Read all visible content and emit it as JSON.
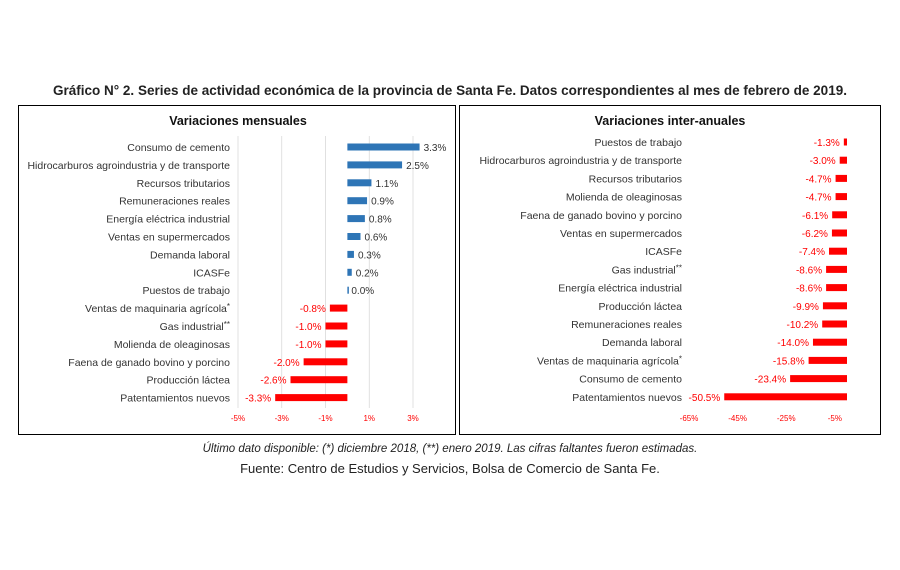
{
  "title": "Gráfico N° 2. Series de actividad económica de la provincia de Santa Fe. Datos correspondientes al mes de febrero de 2019.",
  "footnote": "Último dato disponible: (*) diciembre 2018, (**) enero 2019. Las cifras faltantes fueron estimadas.",
  "source": "Fuente: Centro de Estudios y Servicios, Bolsa de Comercio de Santa Fe.",
  "colors": {
    "positive": "#2e75b6",
    "negative": "#ff0000",
    "grid": "#d9d9d9"
  },
  "chart_data": [
    {
      "type": "bar",
      "orientation": "horizontal",
      "title": "Variaciones mensuales",
      "xlim": [
        -5,
        3
      ],
      "ticks": [
        -5,
        -3,
        -1,
        1,
        3
      ],
      "tick_labels": [
        "-5%",
        "-3%",
        "-1%",
        "1%",
        "3%"
      ],
      "grid": true,
      "categories": [
        {
          "label": "Consumo de cemento",
          "mark": "",
          "value": 3.3,
          "value_label": "3.3%"
        },
        {
          "label": "Hidrocarburos agroindustria y de transporte",
          "mark": "",
          "value": 2.5,
          "value_label": "2.5%"
        },
        {
          "label": "Recursos tributarios",
          "mark": "",
          "value": 1.1,
          "value_label": "1.1%"
        },
        {
          "label": "Remuneraciones reales",
          "mark": "",
          "value": 0.9,
          "value_label": "0.9%"
        },
        {
          "label": "Energía eléctrica industrial",
          "mark": "",
          "value": 0.8,
          "value_label": "0.8%"
        },
        {
          "label": "Ventas en supermercados",
          "mark": "",
          "value": 0.6,
          "value_label": "0.6%"
        },
        {
          "label": "Demanda laboral",
          "mark": "",
          "value": 0.3,
          "value_label": "0.3%"
        },
        {
          "label": "ICASFe",
          "mark": "",
          "value": 0.2,
          "value_label": "0.2%"
        },
        {
          "label": "Puestos de trabajo",
          "mark": "",
          "value": 0.0,
          "value_label": "0.0%"
        },
        {
          "label": "Ventas de maquinaria agrícola",
          "mark": "*",
          "value": -0.8,
          "value_label": "-0.8%"
        },
        {
          "label": "Gas industrial",
          "mark": "**",
          "value": -1.0,
          "value_label": "-1.0%"
        },
        {
          "label": "Molienda de oleaginosas",
          "mark": "",
          "value": -1.0,
          "value_label": "-1.0%"
        },
        {
          "label": "Faena de ganado bovino y porcino",
          "mark": "",
          "value": -2.0,
          "value_label": "-2.0%"
        },
        {
          "label": "Producción láctea",
          "mark": "",
          "value": -2.6,
          "value_label": "-2.6%"
        },
        {
          "label": "Patentamientos nuevos",
          "mark": "",
          "value": -3.3,
          "value_label": "-3.3%"
        }
      ]
    },
    {
      "type": "bar",
      "orientation": "horizontal",
      "title": "Variaciones inter-anuales",
      "xlim": [
        -65,
        0
      ],
      "ticks": [
        -65,
        -45,
        -25,
        -5
      ],
      "tick_labels": [
        "-65%",
        "-45%",
        "-25%",
        "-5%"
      ],
      "grid": false,
      "categories": [
        {
          "label": "Puestos de trabajo",
          "mark": "",
          "value": -1.3,
          "value_label": "-1.3%"
        },
        {
          "label": "Hidrocarburos agroindustria y de transporte",
          "mark": "",
          "value": -3.0,
          "value_label": "-3.0%"
        },
        {
          "label": "Recursos tributarios",
          "mark": "",
          "value": -4.7,
          "value_label": "-4.7%"
        },
        {
          "label": "Molienda de oleaginosas",
          "mark": "",
          "value": -4.7,
          "value_label": "-4.7%"
        },
        {
          "label": "Faena de ganado bovino y porcino",
          "mark": "",
          "value": -6.1,
          "value_label": "-6.1%"
        },
        {
          "label": "Ventas en supermercados",
          "mark": "",
          "value": -6.2,
          "value_label": "-6.2%"
        },
        {
          "label": "ICASFe",
          "mark": "",
          "value": -7.4,
          "value_label": "-7.4%"
        },
        {
          "label": "Gas industrial",
          "mark": "**",
          "value": -8.6,
          "value_label": "-8.6%"
        },
        {
          "label": "Energía eléctrica industrial",
          "mark": "",
          "value": -8.6,
          "value_label": "-8.6%"
        },
        {
          "label": "Producción láctea",
          "mark": "",
          "value": -9.9,
          "value_label": "-9.9%"
        },
        {
          "label": "Remuneraciones reales",
          "mark": "",
          "value": -10.2,
          "value_label": "-10.2%"
        },
        {
          "label": "Demanda laboral",
          "mark": "",
          "value": -14.0,
          "value_label": "-14.0%"
        },
        {
          "label": "Ventas de maquinaria agrícola",
          "mark": "*",
          "value": -15.8,
          "value_label": "-15.8%"
        },
        {
          "label": "Consumo de cemento",
          "mark": "",
          "value": -23.4,
          "value_label": "-23.4%"
        },
        {
          "label": "Patentamientos nuevos",
          "mark": "",
          "value": -50.5,
          "value_label": "-50.5%"
        }
      ]
    }
  ]
}
